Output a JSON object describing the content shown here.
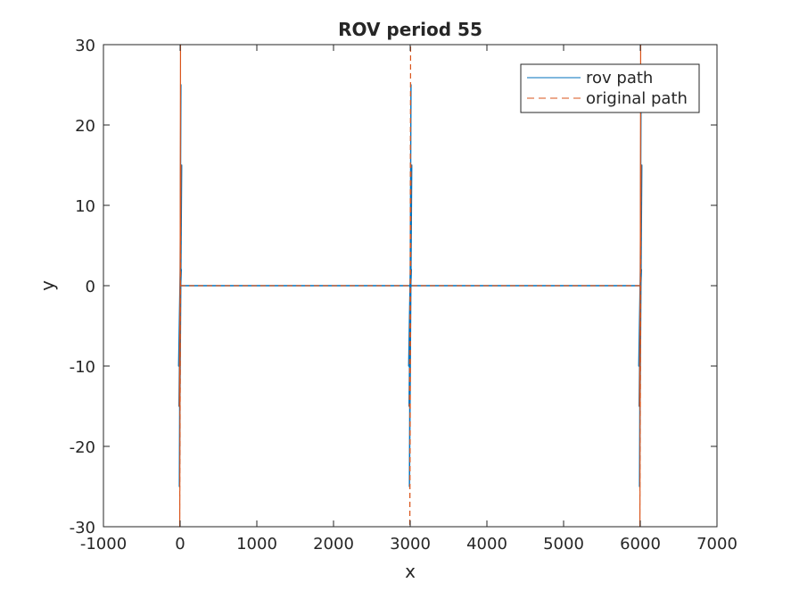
{
  "chart_data": {
    "type": "line",
    "title": "ROV period 55",
    "xlabel": "x",
    "ylabel": "y",
    "xlim": [
      -1000,
      7000
    ],
    "ylim": [
      -30,
      30
    ],
    "xticks": [
      -1000,
      0,
      1000,
      2000,
      3000,
      4000,
      5000,
      6000,
      7000
    ],
    "xtick_labels": [
      "-1000",
      "0",
      "1000",
      "2000",
      "3000",
      "4000",
      "5000",
      "6000",
      "7000"
    ],
    "yticks": [
      -30,
      -20,
      -10,
      0,
      10,
      20,
      30
    ],
    "ytick_labels": [
      "-30",
      "-20",
      "-10",
      "0",
      "10",
      "20",
      "30"
    ],
    "grid": false,
    "legend_position": "top-right",
    "series": [
      {
        "name": "rov path",
        "color": "#0072BD",
        "style": "solid",
        "x": [
          0,
          10,
          -10,
          20,
          -15,
          15,
          -20,
          10,
          -10,
          15,
          0,
          3000,
          3010,
          2990,
          3020,
          2985,
          3015,
          2980,
          3010,
          2990,
          3015,
          3000,
          6000,
          6010,
          5990,
          6020,
          5985,
          6015,
          5980,
          6010,
          5990,
          6015,
          6000
        ],
        "y": [
          0,
          25,
          -25,
          15,
          -15,
          10,
          -10,
          5,
          -5,
          2,
          0,
          0,
          25,
          -25,
          15,
          -15,
          10,
          -10,
          5,
          -5,
          2,
          0,
          0,
          25,
          -25,
          15,
          -15,
          10,
          -10,
          5,
          -5,
          2,
          0
        ]
      },
      {
        "name": "original path",
        "color": "#D95319",
        "style": "dashed",
        "x": [
          0,
          5,
          -5,
          10,
          -10,
          8,
          -8,
          0,
          3000,
          3005,
          2995,
          3010,
          2990,
          3008,
          2992,
          3000,
          6000,
          6005,
          5995,
          6010,
          5990,
          6008,
          5992,
          6000
        ],
        "y": [
          0,
          30,
          -30,
          15,
          -15,
          10,
          -10,
          0,
          0,
          30,
          -30,
          15,
          -15,
          10,
          -10,
          0,
          0,
          30,
          -30,
          15,
          -15,
          10,
          -10,
          0
        ]
      }
    ]
  }
}
